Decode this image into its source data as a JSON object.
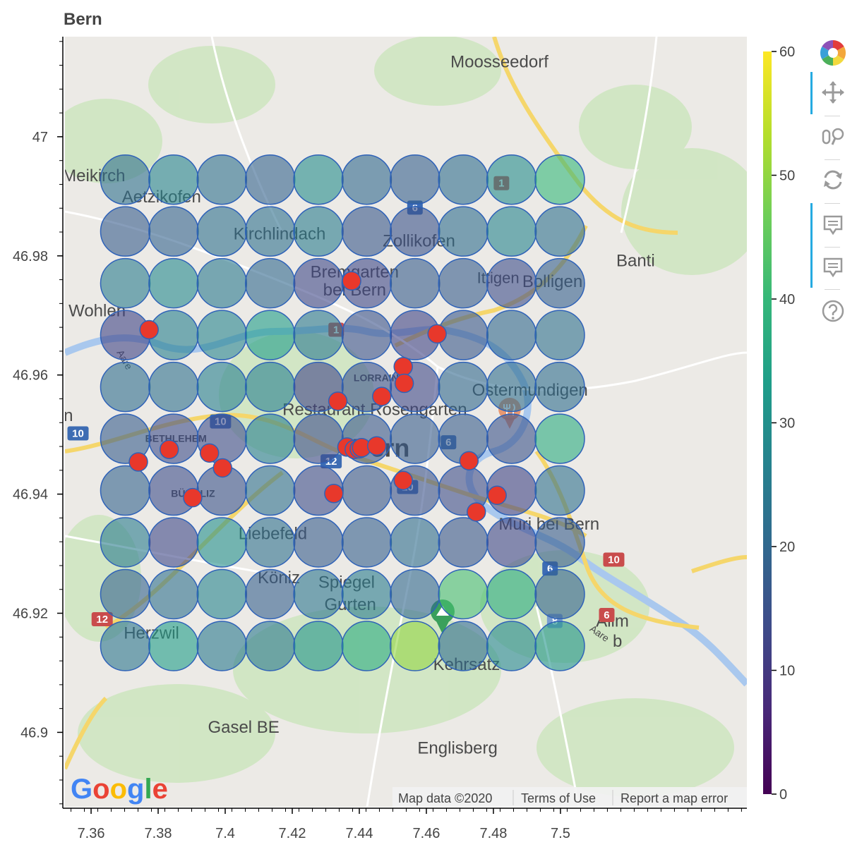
{
  "title": "Bern",
  "map": {
    "attribution": "Map data ©2020",
    "terms": "Terms of Use",
    "report": "Report a map error",
    "logo_letters": [
      "G",
      "o",
      "o",
      "g",
      "l",
      "e"
    ],
    "labels": [
      {
        "text": "Moosseedorf",
        "lon": 7.4818,
        "lat": 47.0124,
        "size": 24
      },
      {
        "text": "Meikirch",
        "lon": 7.3608,
        "lat": 46.9933,
        "size": 24
      },
      {
        "text": "Aetzikofen",
        "lon": 7.381,
        "lat": 46.9897,
        "size": 24
      },
      {
        "text": "Kirchlindach",
        "lon": 7.4162,
        "lat": 46.9835,
        "size": 24
      },
      {
        "text": "Zollikofen",
        "lon": 7.4578,
        "lat": 46.9823,
        "size": 24
      },
      {
        "text": "Banti",
        "lon": 7.5224,
        "lat": 46.979,
        "size": 24,
        "color": "#3c8c3c"
      },
      {
        "text": "Bremgarten",
        "lon": 7.4386,
        "lat": 46.9771,
        "size": 24
      },
      {
        "text": "bei Bern",
        "lon": 7.4386,
        "lat": 46.9741,
        "size": 24
      },
      {
        "text": "Ittigen",
        "lon": 7.4814,
        "lat": 46.9761,
        "size": 22
      },
      {
        "text": "Bolligen",
        "lon": 7.4976,
        "lat": 46.9755,
        "size": 24
      },
      {
        "text": "Wohlen",
        "lon": 7.3618,
        "lat": 46.9706,
        "size": 24
      },
      {
        "text": "LORRAINE",
        "lon": 7.446,
        "lat": 46.9594,
        "size": 14,
        "bold": true
      },
      {
        "text": "Ostermundigen",
        "lon": 7.4909,
        "lat": 46.9573,
        "size": 24
      },
      {
        "text": "Restaurant Rosengarten",
        "lon": 7.4446,
        "lat": 46.954,
        "size": 24,
        "color": "#c8713c"
      },
      {
        "text": "n",
        "lon": 7.3532,
        "lat": 46.953,
        "size": 24
      },
      {
        "text": "BETHLEHEM",
        "lon": 7.3853,
        "lat": 46.9492,
        "size": 14,
        "bold": true
      },
      {
        "text": "Bern",
        "lon": 7.4464,
        "lat": 46.9474,
        "size": 36,
        "bold": true
      },
      {
        "text": "BÜMPLIZ",
        "lon": 7.3904,
        "lat": 46.94,
        "size": 14,
        "bold": true
      },
      {
        "text": "Liebefeld",
        "lon": 7.4142,
        "lat": 46.9332,
        "size": 24
      },
      {
        "text": "Muri bei Bern",
        "lon": 7.4966,
        "lat": 46.9348,
        "size": 24
      },
      {
        "text": "Köniz",
        "lon": 7.416,
        "lat": 46.9258,
        "size": 24
      },
      {
        "text": "Spiegel",
        "lon": 7.4362,
        "lat": 46.925,
        "size": 24
      },
      {
        "text": "Gurten",
        "lon": 7.4373,
        "lat": 46.9213,
        "size": 24,
        "color": "#3c8c3c"
      },
      {
        "text": "Herzwil",
        "lon": 7.378,
        "lat": 46.9165,
        "size": 24
      },
      {
        "text": "Allm",
        "lon": 7.5155,
        "lat": 46.9185,
        "size": 24
      },
      {
        "text": "b",
        "lon": 7.517,
        "lat": 46.9151,
        "size": 24
      },
      {
        "text": "Kehrsatz",
        "lon": 7.472,
        "lat": 46.9112,
        "size": 24
      },
      {
        "text": "Gasel BE",
        "lon": 7.4055,
        "lat": 46.9007,
        "size": 24
      },
      {
        "text": "Englisberg",
        "lon": 7.4693,
        "lat": 46.8972,
        "size": 24
      },
      {
        "text": "Aare",
        "lon": 7.3698,
        "lat": 46.9625,
        "size": 14,
        "color": "#5a86c4",
        "rotate": 60
      },
      {
        "text": "Aare",
        "lon": 7.5115,
        "lat": 46.9165,
        "size": 14,
        "color": "#5a86c4",
        "rotate": 35
      }
    ],
    "shields": [
      {
        "text": "1",
        "lon": 7.4824,
        "lat": 46.9922,
        "color": "#c94c4c"
      },
      {
        "text": "6",
        "lon": 7.4566,
        "lat": 46.9881,
        "color": "#3d6cb3"
      },
      {
        "text": "1",
        "lon": 7.4331,
        "lat": 46.9676,
        "color": "#c94c4c"
      },
      {
        "text": "10",
        "lon": 7.3561,
        "lat": 46.9502,
        "color": "#3d6cb3"
      },
      {
        "text": "10",
        "lon": 7.3986,
        "lat": 46.9522,
        "color": "#3d6cb3"
      },
      {
        "text": "6",
        "lon": 7.4666,
        "lat": 46.9487,
        "color": "#3d6cb3"
      },
      {
        "text": "12",
        "lon": 7.4316,
        "lat": 46.9455,
        "color": "#3d6cb3"
      },
      {
        "text": "10",
        "lon": 7.4544,
        "lat": 46.9412,
        "color": "#3d6cb3"
      },
      {
        "text": "6",
        "lon": 7.4969,
        "lat": 46.9275,
        "color": "#3d6cb3"
      },
      {
        "text": "10",
        "lon": 7.5159,
        "lat": 46.929,
        "color": "#c94c4c"
      },
      {
        "text": "12",
        "lon": 7.3633,
        "lat": 46.919,
        "color": "#c94c4c"
      },
      {
        "text": "6",
        "lon": 7.5138,
        "lat": 46.9197,
        "color": "#c94c4c"
      },
      {
        "text": "8",
        "lon": 7.4983,
        "lat": 46.9187,
        "color": "#7a9ed0"
      }
    ]
  },
  "chart_data": {
    "type": "scatter",
    "title": "Bern",
    "x_range": [
      7.3522,
      7.5556
    ],
    "y_range": [
      46.8875,
      47.0168
    ],
    "x_ticks": [
      7.36,
      7.38,
      7.4,
      7.42,
      7.44,
      7.46,
      7.48,
      7.5
    ],
    "x_tick_labels": [
      "7.36",
      "7.38",
      "7.4",
      "7.42",
      "7.44",
      "7.46",
      "7.48",
      "7.5"
    ],
    "y_ticks": [
      46.9,
      46.92,
      46.94,
      46.96,
      46.98,
      47.0
    ],
    "y_tick_labels": [
      "46.9",
      "46.92",
      "46.94",
      "46.96",
      "46.98",
      "47"
    ],
    "grid": {
      "lons": [
        7.3702,
        7.3846,
        7.399,
        7.4134,
        7.4278,
        7.4422,
        7.4566,
        7.471,
        7.4854,
        7.4998
      ],
      "lats": [
        46.9928,
        46.9841,
        46.9754,
        46.9667,
        46.958,
        46.9493,
        46.9406,
        46.9319,
        46.9232,
        46.9145
      ],
      "values": [
        [
          22,
          27,
          22,
          19,
          29,
          20,
          18,
          21,
          29,
          40
        ],
        [
          17,
          19,
          22,
          22,
          25,
          16,
          15,
          21,
          27,
          22
        ],
        [
          25,
          28,
          24,
          20,
          13,
          13,
          17,
          17,
          14,
          18
        ],
        [
          12,
          26,
          27,
          33,
          24,
          15,
          12,
          16,
          20,
          22
        ],
        [
          21,
          22,
          26,
          26,
          12,
          15,
          13,
          20,
          21,
          21
        ],
        [
          17,
          14,
          14,
          26,
          14,
          16,
          17,
          17,
          15,
          37
        ],
        [
          19,
          14,
          15,
          22,
          14,
          16,
          15,
          14,
          12,
          22
        ],
        [
          25,
          13,
          30,
          22,
          17,
          18,
          21,
          16,
          13,
          17
        ],
        [
          19,
          22,
          27,
          18,
          23,
          25,
          20,
          42,
          37,
          19
        ],
        [
          23,
          33,
          24,
          24,
          31,
          37,
          50,
          21,
          28,
          31
        ]
      ]
    },
    "color_scale": {
      "name": "Viridis",
      "low": 0,
      "high": 60,
      "ticks": [
        0,
        10,
        20,
        30,
        40,
        50,
        60
      ],
      "tick_labels": [
        "0",
        "10",
        "20",
        "30",
        "40",
        "50",
        "60"
      ],
      "stops": [
        "#440154",
        "#482878",
        "#3e4a89",
        "#31688e",
        "#26828e",
        "#1f9e89",
        "#35b779",
        "#6ece58",
        "#b5de2b",
        "#fde725"
      ]
    },
    "points": [
      {
        "lon": 7.3773,
        "lat": 46.9676
      },
      {
        "lon": 7.4377,
        "lat": 46.9758
      },
      {
        "lon": 7.4632,
        "lat": 46.9669
      },
      {
        "lon": 7.4531,
        "lat": 46.9614
      },
      {
        "lon": 7.4534,
        "lat": 46.9586
      },
      {
        "lon": 7.4336,
        "lat": 46.9556
      },
      {
        "lon": 7.4467,
        "lat": 46.9564
      },
      {
        "lon": 7.3741,
        "lat": 46.9454
      },
      {
        "lon": 7.3833,
        "lat": 46.9475
      },
      {
        "lon": 7.3953,
        "lat": 46.9469
      },
      {
        "lon": 7.3992,
        "lat": 46.9444
      },
      {
        "lon": 7.3903,
        "lat": 46.9394
      },
      {
        "lon": 7.4363,
        "lat": 46.9479
      },
      {
        "lon": 7.4385,
        "lat": 46.9475
      },
      {
        "lon": 7.44,
        "lat": 46.9476
      },
      {
        "lon": 7.4407,
        "lat": 46.9478
      },
      {
        "lon": 7.4452,
        "lat": 46.9481
      },
      {
        "lon": 7.4727,
        "lat": 46.9456
      },
      {
        "lon": 7.4531,
        "lat": 46.9423
      },
      {
        "lon": 7.4324,
        "lat": 46.9401
      },
      {
        "lon": 7.4811,
        "lat": 46.9398
      },
      {
        "lon": 7.4749,
        "lat": 46.937
      }
    ],
    "point_color": "#e8382b",
    "circle_alpha": 0.6
  },
  "toolbar": {
    "tools": [
      {
        "name": "bokeh-logo",
        "active": false
      },
      {
        "name": "pan-tool",
        "active": true
      },
      {
        "name": "wheel-zoom-tool",
        "active": false
      },
      {
        "name": "reset-tool",
        "active": false
      },
      {
        "name": "hover-tool",
        "active": true
      },
      {
        "name": "hover-tool-2",
        "active": true
      },
      {
        "name": "help-tool",
        "active": false
      }
    ]
  }
}
